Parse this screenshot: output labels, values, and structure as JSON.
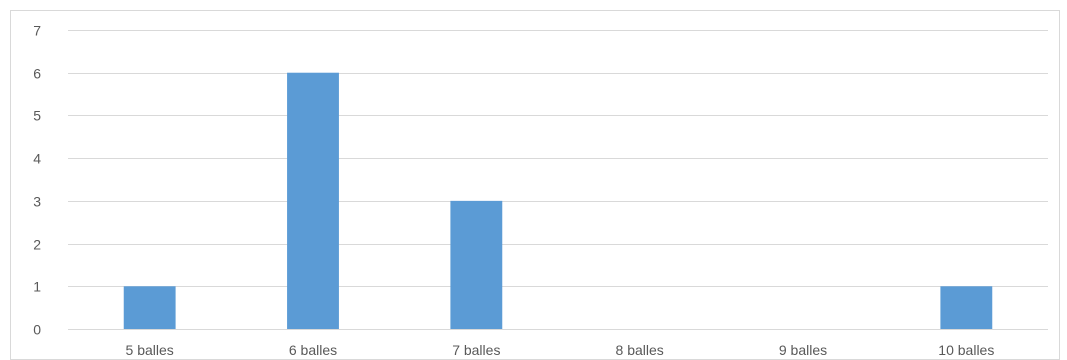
{
  "chart_data": {
    "type": "bar",
    "title": "",
    "xlabel": "",
    "ylabel": "",
    "categories": [
      "5 balles",
      "6 balles",
      "7 balles",
      "8 balles",
      "9 balles",
      "10 balles"
    ],
    "values": [
      1,
      6,
      3,
      0,
      0,
      1
    ],
    "ylim": [
      0,
      7
    ],
    "yticks": [
      "0",
      "1",
      "2",
      "3",
      "4",
      "5",
      "6",
      "7"
    ],
    "grid": true,
    "legend": "none",
    "bar_color": "#5b9bd5",
    "grid_color": "#d9d9d9",
    "tick_color": "#595959"
  }
}
